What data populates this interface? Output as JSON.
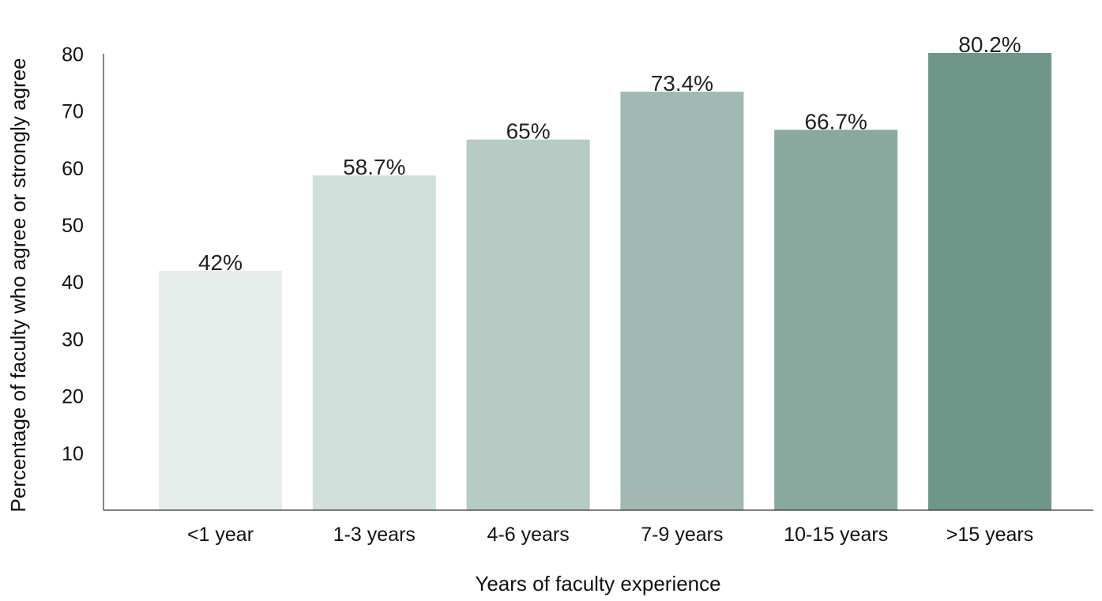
{
  "chart_data": {
    "type": "bar",
    "title": "",
    "xlabel": "Years of faculty experience",
    "ylabel": "Percentage of faculty who agree or strongly agree",
    "categories": [
      "<1 year",
      "1-3 years",
      "4-6 years",
      "7-9 years",
      "10-15 years",
      ">15 years"
    ],
    "values": [
      42,
      58.7,
      65,
      73.4,
      66.7,
      80.2
    ],
    "value_labels": [
      "42%",
      "58.7%",
      "65%",
      "73.4%",
      "66.7%",
      "80.2%"
    ],
    "yticks": [
      10,
      20,
      30,
      40,
      50,
      60,
      70,
      80
    ],
    "ylim": [
      0,
      80
    ],
    "grid": false,
    "legend": "none",
    "bar_colors": [
      "#e6eeeb",
      "#d0dfda",
      "#b5cbc4",
      "#a0bab3",
      "#89a99f",
      "#6e978a"
    ],
    "axis_color": "#333333"
  }
}
